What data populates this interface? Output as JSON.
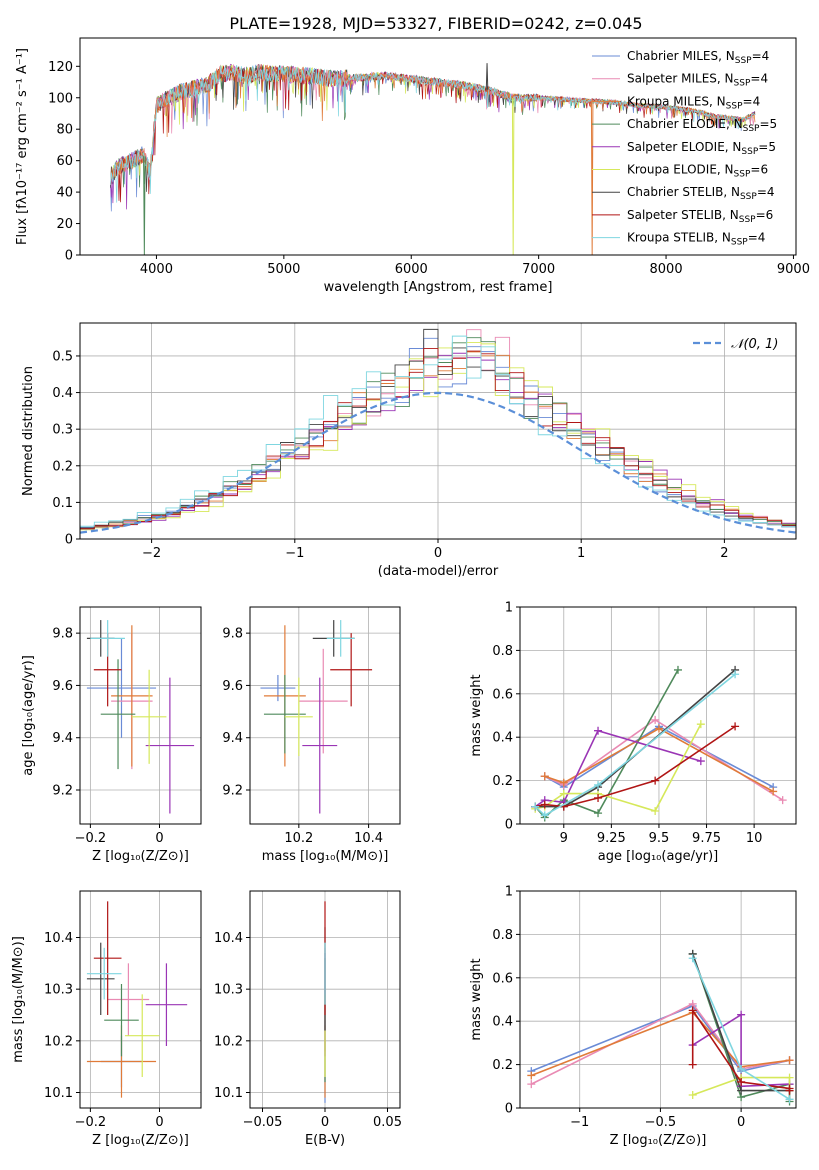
{
  "figure": {
    "title": "PLATE=1928, MJD=53327, FIBERID=0242, z=0.045"
  },
  "models": [
    {
      "name": "Chabrier MILES, N_SSP=4",
      "label": "Chabrier MILES, N",
      "sub": "SSP",
      "tail": "=4",
      "color": "#6a8bd6"
    },
    {
      "name": "Salpeter MILES, N_SSP=4",
      "label": "Salpeter MILES, N",
      "sub": "SSP",
      "tail": "=4",
      "color": "#e98ab3"
    },
    {
      "name": "Kroupa MILES, N_SSP=4",
      "label": "Kroupa MILES, N",
      "sub": "SSP",
      "tail": "=4",
      "color": "#e07b39"
    },
    {
      "name": "Chabrier ELODIE, N_SSP=5",
      "label": "Chabrier ELODIE, N",
      "sub": "SSP",
      "tail": "=5",
      "color": "#4f8a5b"
    },
    {
      "name": "Salpeter ELODIE, N_SSP=5",
      "label": "Salpeter ELODIE, N",
      "sub": "SSP",
      "tail": "=5",
      "color": "#9a35b5"
    },
    {
      "name": "Kroupa ELODIE, N_SSP=6",
      "label": "Kroupa ELODIE, N",
      "sub": "SSP",
      "tail": "=6",
      "color": "#d6e85a"
    },
    {
      "name": "Chabrier STELIB, N_SSP=4",
      "label": "Chabrier STELIB, N",
      "sub": "SSP",
      "tail": "=4",
      "color": "#444444"
    },
    {
      "name": "Salpeter STELIB, N_SSP=6",
      "label": "Salpeter STELIB, N",
      "sub": "SSP",
      "tail": "=6",
      "color": "#b01515"
    },
    {
      "name": "Kroupa STELIB, N_SSP=4",
      "label": "Kroupa STELIB, N",
      "sub": "SSP",
      "tail": "=4",
      "color": "#7fd6e0"
    }
  ],
  "chart_data": [
    {
      "id": "spectrum",
      "type": "line",
      "xlabel": "wavelength [Angstrom, rest frame]",
      "ylabel": "Flux [fλ10⁻¹⁷ erg cm⁻² s⁻¹ A⁻¹]",
      "xlim": [
        3400,
        9020
      ],
      "ylim": [
        0,
        138
      ],
      "xticks": [
        4000,
        5000,
        6000,
        7000,
        8000,
        9000
      ],
      "yticks": [
        0,
        20,
        40,
        60,
        80,
        100,
        120
      ],
      "continuum": {
        "x": [
          3640,
          3700,
          3800,
          3900,
          3950,
          4000,
          4050,
          4100,
          4200,
          4300,
          4400,
          4500,
          4600,
          4700,
          4800,
          5000,
          5200,
          5400,
          5600,
          5800,
          6000,
          6200,
          6400,
          6600,
          6800,
          7000,
          7200,
          7400,
          7600,
          7800,
          8000,
          8200,
          8400,
          8600,
          8700
        ],
        "y": [
          50,
          56,
          60,
          64,
          52,
          95,
          98,
          100,
          104,
          106,
          108,
          115,
          116,
          114,
          116,
          115,
          114,
          112,
          113,
          114,
          112,
          110,
          108,
          105,
          100,
          100,
          99,
          98,
          97,
          95,
          94,
          92,
          88,
          86,
          90
        ]
      },
      "spikes": [
        {
          "series": "Chabrier ELODIE, N_SSP=5",
          "x": 3905,
          "y": 0
        },
        {
          "series": "Kroupa ELODIE, N_SSP=6",
          "x": 6800,
          "y": 0
        },
        {
          "series": "Kroupa MILES, N_SSP=4",
          "x": 7420,
          "y": 0
        },
        {
          "series": "Chabrier STELIB, N_SSP=4",
          "x": 6595,
          "y": 122
        }
      ],
      "legend_loc": "upper right"
    },
    {
      "id": "residuals",
      "type": "line",
      "xlabel": "(data-model)/error",
      "ylabel": "Normed distribution",
      "xlim": [
        -2.5,
        2.5
      ],
      "ylim": [
        0,
        0.59
      ],
      "xticks": [
        -2,
        -1,
        0,
        1,
        2
      ],
      "yticks": [
        0.0,
        0.1,
        0.2,
        0.3,
        0.4,
        0.5
      ],
      "reference": {
        "label": "𝒩(0, 1)",
        "mean": 0,
        "sigma": 1,
        "style": "dashed"
      },
      "bin_width": 0.1,
      "legend_loc": "upper right"
    },
    {
      "id": "age_vs_Z",
      "type": "scatter",
      "xlabel": "Z [log₁₀(Z/Z⊙)]",
      "ylabel": "age  [log₁₀(age/yr)]",
      "xlim": [
        -0.23,
        0.12
      ],
      "ylim": [
        9.07,
        9.9
      ],
      "xticks": [
        -0.2,
        0.0
      ],
      "yticks": [
        9.2,
        9.4,
        9.6,
        9.8
      ],
      "points": [
        {
          "x": -0.11,
          "y": 9.59,
          "xerr": 0.1,
          "yerr": 0.19
        },
        {
          "x": -0.08,
          "y": 9.54,
          "xerr": 0.06,
          "yerr": 0.26
        },
        {
          "x": -0.08,
          "y": 9.56,
          "xerr": 0.06,
          "yerr": 0.27
        },
        {
          "x": -0.12,
          "y": 9.49,
          "xerr": 0.05,
          "yerr": 0.21
        },
        {
          "x": 0.03,
          "y": 9.37,
          "xerr": 0.07,
          "yerr": 0.26
        },
        {
          "x": -0.03,
          "y": 9.48,
          "xerr": 0.05,
          "yerr": 0.18
        },
        {
          "x": -0.17,
          "y": 9.78,
          "xerr": 0.04,
          "yerr": 0.07
        },
        {
          "x": -0.15,
          "y": 9.66,
          "xerr": 0.04,
          "yerr": 0.14
        },
        {
          "x": -0.15,
          "y": 9.78,
          "xerr": 0.05,
          "yerr": 0.07
        }
      ]
    },
    {
      "id": "age_vs_mass",
      "type": "scatter",
      "xlabel": "mass [log₁₀(M/M⊙)]",
      "ylabel": "",
      "xlim": [
        10.06,
        10.49
      ],
      "ylim": [
        9.07,
        9.9
      ],
      "xticks": [
        10.2,
        10.4
      ],
      "yticks": [
        9.2,
        9.4,
        9.6,
        9.8
      ],
      "points": [
        {
          "x": 10.14,
          "y": 9.59,
          "xerr": 0.05,
          "yerr": 0.05
        },
        {
          "x": 10.27,
          "y": 9.54,
          "xerr": 0.07,
          "yerr": 0.2
        },
        {
          "x": 10.16,
          "y": 9.56,
          "xerr": 0.06,
          "yerr": 0.27
        },
        {
          "x": 10.16,
          "y": 9.49,
          "xerr": 0.06,
          "yerr": 0.15
        },
        {
          "x": 10.26,
          "y": 9.37,
          "xerr": 0.05,
          "yerr": 0.26
        },
        {
          "x": 10.2,
          "y": 9.48,
          "xerr": 0.04,
          "yerr": 0.15
        },
        {
          "x": 10.3,
          "y": 9.78,
          "xerr": 0.06,
          "yerr": 0.07
        },
        {
          "x": 10.35,
          "y": 9.66,
          "xerr": 0.06,
          "yerr": 0.14
        },
        {
          "x": 10.32,
          "y": 9.78,
          "xerr": 0.04,
          "yerr": 0.07
        }
      ]
    },
    {
      "id": "weight_vs_age",
      "type": "line",
      "xlabel": "age  [log₁₀(age/yr)]",
      "ylabel": "mass weight",
      "xlim": [
        8.77,
        10.22
      ],
      "ylim": [
        0,
        1.0
      ],
      "xticks": [
        9.0,
        9.25,
        9.5,
        9.75,
        10.0
      ],
      "yticks": [
        0.0,
        0.2,
        0.4,
        0.6,
        0.8,
        1.0
      ],
      "series": [
        {
          "name": "Chabrier MILES, N_SSP=4",
          "x": [
            8.9,
            9.0,
            9.5,
            10.1
          ],
          "y": [
            0.22,
            0.17,
            0.45,
            0.17
          ]
        },
        {
          "name": "Salpeter MILES, N_SSP=4",
          "x": [
            8.9,
            9.0,
            9.48,
            10.15
          ],
          "y": [
            0.22,
            0.18,
            0.48,
            0.11
          ]
        },
        {
          "name": "Kroupa MILES, N_SSP=4",
          "x": [
            8.9,
            9.0,
            9.5,
            10.1
          ],
          "y": [
            0.22,
            0.19,
            0.44,
            0.15
          ]
        },
        {
          "name": "Chabrier ELODIE, N_SSP=5",
          "x": [
            8.85,
            8.9,
            9.0,
            9.18,
            9.6
          ],
          "y": [
            0.08,
            0.03,
            0.11,
            0.05,
            0.71
          ]
        },
        {
          "name": "Salpeter ELODIE, N_SSP=5",
          "x": [
            8.85,
            8.9,
            9.0,
            9.18,
            9.72
          ],
          "y": [
            0.08,
            0.11,
            0.1,
            0.43,
            0.29
          ]
        },
        {
          "name": "Kroupa ELODIE, N_SSP=6",
          "x": [
            8.85,
            8.9,
            9.0,
            9.18,
            9.48,
            9.72
          ],
          "y": [
            0.07,
            0.08,
            0.14,
            0.14,
            0.06,
            0.46
          ]
        },
        {
          "name": "Chabrier STELIB, N_SSP=4",
          "x": [
            8.85,
            9.0,
            9.18,
            9.9
          ],
          "y": [
            0.08,
            0.08,
            0.17,
            0.71
          ]
        },
        {
          "name": "Salpeter STELIB, N_SSP=6",
          "x": [
            8.85,
            8.9,
            9.0,
            9.18,
            9.48,
            9.9
          ],
          "y": [
            0.08,
            0.09,
            0.08,
            0.12,
            0.2,
            0.45
          ]
        },
        {
          "name": "Kroupa STELIB, N_SSP=4",
          "x": [
            8.85,
            8.9,
            9.18,
            9.9
          ],
          "y": [
            0.08,
            0.04,
            0.18,
            0.69
          ]
        }
      ]
    },
    {
      "id": "mass_vs_Z",
      "type": "scatter",
      "xlabel": "Z [log₁₀(Z/Z⊙)]",
      "ylabel": "mass [log₁₀(M/M⊙)]",
      "xlim": [
        -0.23,
        0.12
      ],
      "ylim": [
        10.07,
        10.49
      ],
      "xticks": [
        -0.2,
        0.0
      ],
      "yticks": [
        10.1,
        10.2,
        10.3,
        10.4
      ],
      "points": [
        {
          "x": -0.11,
          "y": 10.16,
          "xerr": 0.06,
          "yerr": 0.05
        },
        {
          "x": -0.09,
          "y": 10.28,
          "xerr": 0.06,
          "yerr": 0.07
        },
        {
          "x": -0.11,
          "y": 10.16,
          "xerr": 0.1,
          "yerr": 0.07
        },
        {
          "x": -0.11,
          "y": 10.24,
          "xerr": 0.05,
          "yerr": 0.07
        },
        {
          "x": 0.02,
          "y": 10.27,
          "xerr": 0.06,
          "yerr": 0.08
        },
        {
          "x": -0.05,
          "y": 10.21,
          "xerr": 0.05,
          "yerr": 0.08
        },
        {
          "x": -0.17,
          "y": 10.32,
          "xerr": 0.04,
          "yerr": 0.07
        },
        {
          "x": -0.15,
          "y": 10.36,
          "xerr": 0.04,
          "yerr": 0.11
        },
        {
          "x": -0.16,
          "y": 10.33,
          "xerr": 0.05,
          "yerr": 0.05
        }
      ]
    },
    {
      "id": "mass_vs_EBV",
      "type": "scatter",
      "xlabel": "E(B-V)",
      "ylabel": "",
      "xlim": [
        -0.06,
        0.06
      ],
      "ylim": [
        10.07,
        10.49
      ],
      "xticks": [
        -0.05,
        0.0,
        0.05
      ],
      "yticks": [
        10.1,
        10.2,
        10.3,
        10.4
      ],
      "points": [
        {
          "x": 0.0,
          "y": 10.16,
          "xerr": 0,
          "yerr": 0.08
        },
        {
          "x": 0.0,
          "y": 10.28,
          "xerr": 0,
          "yerr": 0.1
        },
        {
          "x": 0.0,
          "y": 10.16,
          "xerr": 0,
          "yerr": 0.07
        },
        {
          "x": 0.0,
          "y": 10.24,
          "xerr": 0,
          "yerr": 0.12
        },
        {
          "x": 0.0,
          "y": 10.27,
          "xerr": 0,
          "yerr": 0.1
        },
        {
          "x": 0.0,
          "y": 10.21,
          "xerr": 0,
          "yerr": 0.08
        },
        {
          "x": 0.0,
          "y": 10.32,
          "xerr": 0,
          "yerr": 0.1
        },
        {
          "x": 0.0,
          "y": 10.36,
          "xerr": 0,
          "yerr": 0.11
        },
        {
          "x": 0.0,
          "y": 10.33,
          "xerr": 0,
          "yerr": 0.06
        }
      ]
    },
    {
      "id": "weight_vs_Z",
      "type": "line",
      "xlabel": "Z [log₁₀(Z/Z⊙)]",
      "ylabel": "mass weight",
      "xlim": [
        -1.37,
        0.34
      ],
      "ylim": [
        0,
        1.0
      ],
      "xticks": [
        -1.0,
        -0.5,
        0.0
      ],
      "yticks": [
        0.0,
        0.2,
        0.4,
        0.6,
        0.8,
        1.0
      ],
      "series": [
        {
          "name": "Chabrier MILES, N_SSP=4",
          "x": [
            -1.3,
            -0.3,
            0.0,
            0.3
          ],
          "y": [
            0.17,
            0.47,
            0.17,
            0.22
          ]
        },
        {
          "name": "Salpeter MILES, N_SSP=4",
          "x": [
            -1.3,
            -0.3,
            0.0,
            0.3
          ],
          "y": [
            0.11,
            0.48,
            0.18,
            0.22
          ]
        },
        {
          "name": "Kroupa MILES, N_SSP=4",
          "x": [
            -1.3,
            -0.3,
            0.0,
            0.3
          ],
          "y": [
            0.15,
            0.44,
            0.19,
            0.22
          ]
        },
        {
          "name": "Chabrier ELODIE, N_SSP=5",
          "x": [
            -0.3,
            0.0,
            0.3,
            0.3
          ],
          "y": [
            0.71,
            0.05,
            0.11,
            0.03
          ]
        },
        {
          "name": "Salpeter ELODIE, N_SSP=5",
          "x": [
            -0.3,
            0.0,
            0.0,
            0.3
          ],
          "y": [
            0.29,
            0.43,
            0.1,
            0.11
          ]
        },
        {
          "name": "Kroupa ELODIE, N_SSP=6",
          "x": [
            -0.3,
            0.0,
            0.3,
            0.3
          ],
          "y": [
            0.06,
            0.14,
            0.14,
            0.08
          ]
        },
        {
          "name": "Chabrier STELIB, N_SSP=4",
          "x": [
            -0.3,
            0.0,
            0.3
          ],
          "y": [
            0.71,
            0.08,
            0.08
          ]
        },
        {
          "name": "Salpeter STELIB, N_SSP=6",
          "x": [
            -0.3,
            -0.3,
            0.0,
            0.3,
            0.3
          ],
          "y": [
            0.2,
            0.45,
            0.12,
            0.09,
            0.08
          ]
        },
        {
          "name": "Kroupa STELIB, N_SSP=4",
          "x": [
            -0.3,
            0.0,
            0.3
          ],
          "y": [
            0.69,
            0.18,
            0.04
          ]
        }
      ]
    }
  ]
}
